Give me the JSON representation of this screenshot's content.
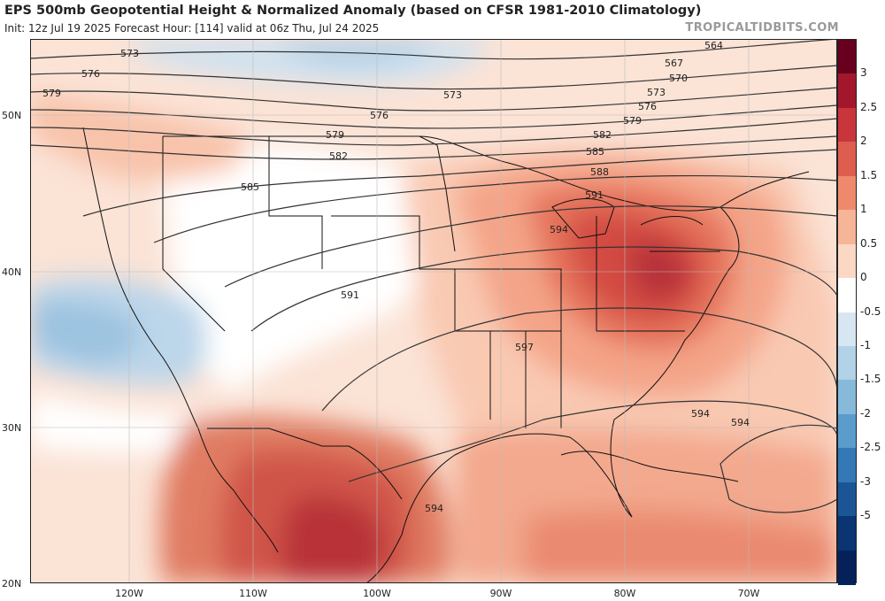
{
  "title": "EPS 500mb Geopotential Height & Normalized Anomaly (based on CFSR 1981-2010 Climatology)",
  "subtitle": "Init: 12z Jul 19 2025   Forecast Hour: [114]   valid at 06z Thu, Jul 24 2025",
  "brand": "TROPICALTIDBITS.COM",
  "latitude_labels": [
    "50N",
    "40N",
    "30N",
    "20N"
  ],
  "longitude_labels": [
    "120W",
    "110W",
    "100W",
    "90W",
    "80W",
    "70W"
  ],
  "contour_labels": [
    "564",
    "567",
    "570",
    "573",
    "573",
    "573",
    "576",
    "576",
    "576",
    "579",
    "579",
    "579",
    "582",
    "582",
    "585",
    "585",
    "588",
    "591",
    "591",
    "594",
    "594",
    "594",
    "594",
    "597"
  ],
  "colorbar_ticks": [
    "3",
    "2.5",
    "2",
    "1.5",
    "1",
    "0.5",
    "0",
    "-0.5",
    "-1",
    "-1.5",
    "-2",
    "-2.5",
    "-3",
    "-5"
  ],
  "colorbar_colors": [
    "#67001f",
    "#a3172c",
    "#c8353b",
    "#dd5d4f",
    "#ee8a6b",
    "#f6b596",
    "#fbd8c4",
    "#ffffff",
    "#d7e7f2",
    "#b1d2e7",
    "#86b9da",
    "#5a9ccb",
    "#3478b5",
    "#1b5595",
    "#0a3472",
    "#06215a"
  ]
}
